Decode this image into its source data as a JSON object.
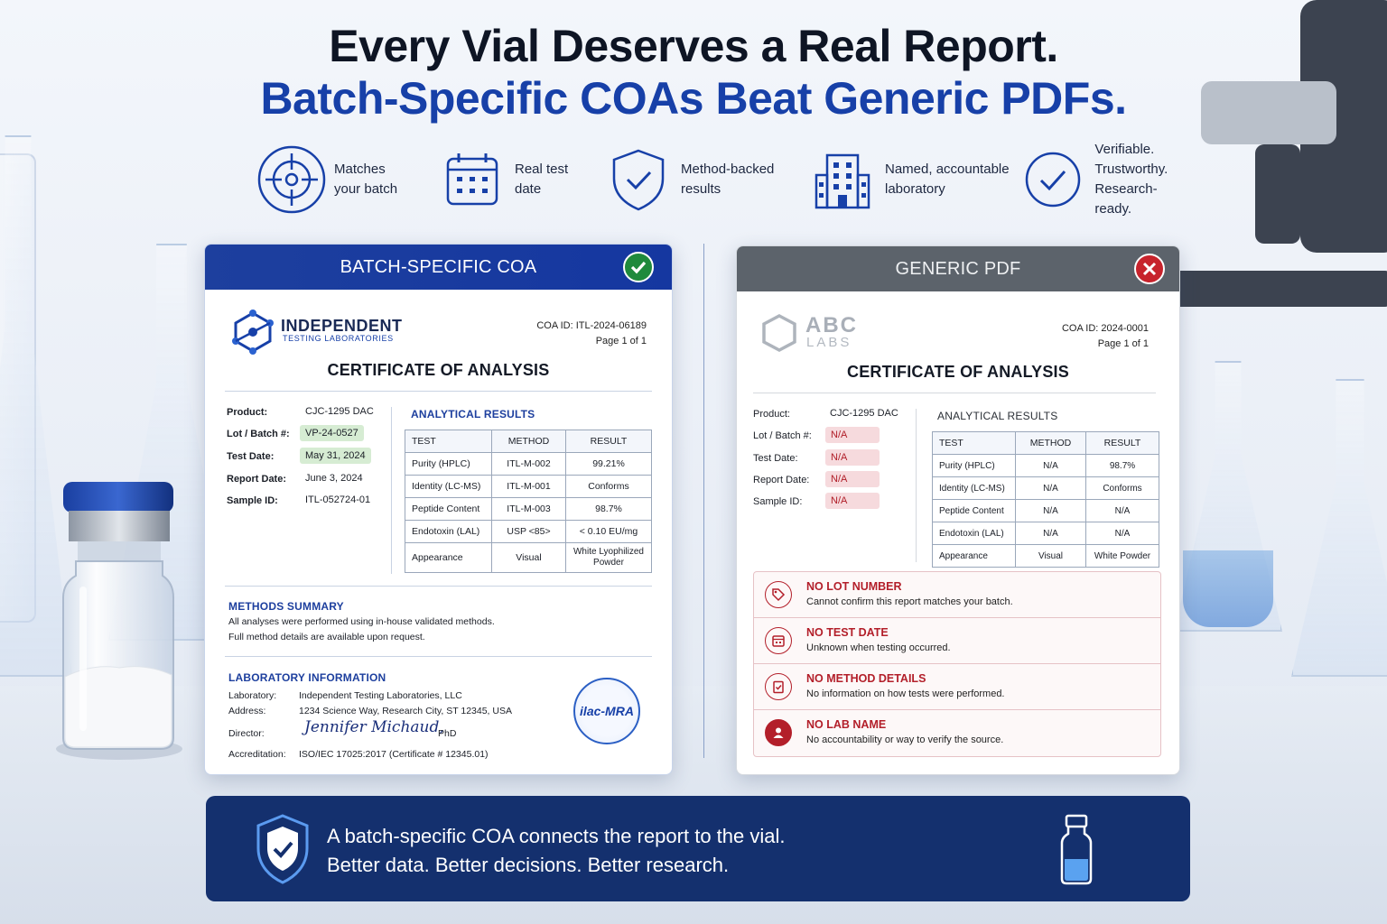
{
  "headline": {
    "line1": "Every Vial Deserves a Real Report.",
    "line2": "Batch-Specific COAs Beat Generic PDFs."
  },
  "features": [
    {
      "icon": "target-icon",
      "lines": [
        "Matches",
        "your batch"
      ]
    },
    {
      "icon": "calendar-icon",
      "lines": [
        "Real test",
        "date"
      ]
    },
    {
      "icon": "shield-check-icon",
      "lines": [
        "Method-backed",
        "results"
      ]
    },
    {
      "icon": "building-icon",
      "lines": [
        "Named, accountable",
        "laboratory"
      ]
    },
    {
      "icon": "check-circle-icon",
      "lines": [
        "Verifiable.",
        "Trustworthy.",
        "Research-ready."
      ]
    }
  ],
  "left_card": {
    "header": "BATCH-SPECIFIC COA",
    "lab_name": "INDEPENDENT",
    "lab_sub": "TESTING LABORATORIES",
    "coa_id": "COA ID: ITL-2024-06189",
    "page": "Page 1 of 1",
    "title": "CERTIFICATE OF ANALYSIS",
    "fields": [
      {
        "label": "Product:",
        "value": "CJC-1295 DAC",
        "highlight": false
      },
      {
        "label": "Lot / Batch #:",
        "value": "VP-24-0527",
        "highlight": true
      },
      {
        "label": "Test Date:",
        "value": "May 31, 2024",
        "highlight": true
      },
      {
        "label": "Report Date:",
        "value": "June 3, 2024",
        "highlight": false
      },
      {
        "label": "Sample ID:",
        "value": "ITL-052724-01",
        "highlight": false
      }
    ],
    "results_title": "ANALYTICAL RESULTS",
    "columns": [
      "TEST",
      "METHOD",
      "RESULT"
    ],
    "rows": [
      [
        "Purity (HPLC)",
        "ITL-M-002",
        "99.21%"
      ],
      [
        "Identity (LC-MS)",
        "ITL-M-001",
        "Conforms"
      ],
      [
        "Peptide Content",
        "ITL-M-003",
        "98.7%"
      ],
      [
        "Endotoxin (LAL)",
        "USP <85>",
        "< 0.10 EU/mg"
      ],
      [
        "Appearance",
        "Visual",
        "White Lyophilized Powder"
      ]
    ],
    "methods_title": "METHODS SUMMARY",
    "methods_line1": "All analyses were performed using in-house validated methods.",
    "methods_line2": "Full method details are available upon request.",
    "lab_info_title": "LABORATORY INFORMATION",
    "lab_info": [
      {
        "label": "Laboratory:",
        "value": "Independent Testing Laboratories, LLC"
      },
      {
        "label": "Address:",
        "value": "1234 Science Way, Research City, ST 12345, USA"
      },
      {
        "label": "Director:",
        "value": "PhD"
      },
      {
        "label": "Accreditation:",
        "value": "ISO/IEC 17025:2017 (Certificate # 12345.01)"
      }
    ],
    "signature": "Jennifer Michaud,",
    "seal": "ilac-MRA"
  },
  "right_card": {
    "header": "GENERIC PDF",
    "lab_name": "ABC",
    "lab_sub": "LABS",
    "coa_id": "COA ID: 2024-0001",
    "page": "Page 1 of 1",
    "title": "CERTIFICATE OF ANALYSIS",
    "fields": [
      {
        "label": "Product:",
        "value": "CJC-1295 DAC",
        "highlight": false
      },
      {
        "label": "Lot / Batch #:",
        "value": "N/A",
        "highlight": true
      },
      {
        "label": "Test Date:",
        "value": "N/A",
        "highlight": true
      },
      {
        "label": "Report Date:",
        "value": "N/A",
        "highlight": true
      },
      {
        "label": "Sample ID:",
        "value": "N/A",
        "highlight": true
      }
    ],
    "results_title": "ANALYTICAL RESULTS",
    "columns": [
      "TEST",
      "METHOD",
      "RESULT"
    ],
    "rows": [
      [
        "Purity (HPLC)",
        "N/A",
        "98.7%"
      ],
      [
        "Identity (LC-MS)",
        "N/A",
        "Conforms"
      ],
      [
        "Peptide Content",
        "N/A",
        "N/A"
      ],
      [
        "Endotoxin (LAL)",
        "N/A",
        "N/A"
      ],
      [
        "Appearance",
        "Visual",
        "White Powder"
      ]
    ],
    "problems": [
      {
        "icon": "tag-icon",
        "title": "NO LOT NUMBER",
        "desc": "Cannot confirm this report matches your batch."
      },
      {
        "icon": "calendar-icon",
        "title": "NO TEST DATE",
        "desc": "Unknown when testing occurred."
      },
      {
        "icon": "clipboard-check-icon",
        "title": "NO METHOD DETAILS",
        "desc": "No information on how tests were performed."
      },
      {
        "icon": "user-icon",
        "title": "NO LAB NAME",
        "desc": "No accountability or way to verify the source."
      }
    ]
  },
  "banner": {
    "line1": "A batch-specific COA connects the report to the vial.",
    "line2": "Better data. Better decisions. Better research."
  },
  "colors": {
    "brand_blue": "#1740a8",
    "ok_green": "#1f8a3c",
    "bad_red": "#c7232c",
    "banner_navy": "#14306e"
  }
}
